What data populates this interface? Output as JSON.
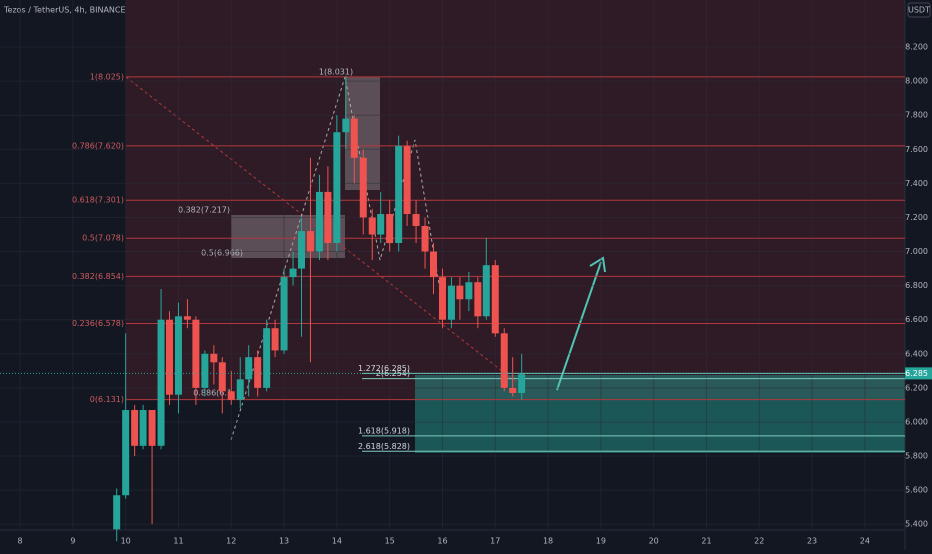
{
  "header": {
    "symbol": "Tezos / TetherUS, 4h, BINANCE",
    "currency": "USDT"
  },
  "chart_data": {
    "type": "candlestick",
    "xlim": [
      7.62,
      24.76
    ],
    "ylim": [
      5.366,
      8.476
    ],
    "xticks": [
      8,
      9,
      10,
      11,
      12,
      13,
      14,
      15,
      16,
      17,
      18,
      19,
      20,
      21,
      22,
      23,
      24
    ],
    "yticks": [
      {
        "value": 5.4,
        "label": "5.400"
      },
      {
        "value": 5.6,
        "label": "5.600"
      },
      {
        "value": 5.8,
        "label": "5.800"
      },
      {
        "value": 6.0,
        "label": "6.000"
      },
      {
        "value": 6.2,
        "label": "6.200"
      },
      {
        "value": 6.4,
        "label": "6.400"
      },
      {
        "value": 6.6,
        "label": "6.600"
      },
      {
        "value": 6.8,
        "label": "6.800"
      },
      {
        "value": 7.0,
        "label": "7.000"
      },
      {
        "value": 7.2,
        "label": "7.200"
      },
      {
        "value": 7.4,
        "label": "7.400"
      },
      {
        "value": 7.6,
        "label": "7.600"
      },
      {
        "value": 7.8,
        "label": "7.800"
      },
      {
        "value": 8.0,
        "label": "8.000"
      },
      {
        "value": 8.2,
        "label": "8.200"
      }
    ],
    "up_color": "#26a69a",
    "down_color": "#ef5350",
    "candles": {
      "x": [
        9.83,
        10,
        10.17,
        10.33,
        10.5,
        10.67,
        10.83,
        11,
        11.17,
        11.33,
        11.5,
        11.67,
        11.83,
        12,
        12.17,
        12.33,
        12.5,
        12.67,
        12.83,
        13,
        13.17,
        13.33,
        13.5,
        13.67,
        13.83,
        14,
        14.17,
        14.33,
        14.5,
        14.67,
        14.83,
        15,
        15.17,
        15.33,
        15.5,
        15.67,
        15.83,
        16,
        16.17,
        16.33,
        16.5,
        16.67,
        16.83,
        17,
        17.17,
        17.33,
        17.5
      ],
      "open": [
        5.37,
        5.57,
        6.07,
        5.86,
        6.07,
        5.86,
        6.6,
        6.16,
        6.62,
        6.6,
        6.2,
        6.4,
        6.35,
        6.18,
        6.13,
        6.25,
        6.38,
        6.2,
        6.55,
        6.42,
        6.85,
        6.9,
        7.12,
        7.0,
        7.35,
        7.05,
        7.7,
        7.78,
        7.55,
        7.2,
        7.1,
        7.22,
        7.05,
        7.62,
        7.22,
        7.15,
        7.0,
        6.85,
        6.6,
        6.8,
        6.72,
        6.82,
        6.62,
        6.92,
        6.52,
        6.2,
        6.17
      ],
      "high": [
        5.61,
        6.52,
        6.1,
        6.1,
        6.07,
        6.78,
        6.65,
        6.7,
        6.72,
        6.62,
        6.42,
        6.45,
        6.38,
        6.3,
        6.38,
        6.45,
        6.42,
        6.6,
        6.6,
        6.9,
        7.0,
        7.2,
        7.55,
        7.45,
        7.5,
        7.8,
        8.03,
        7.8,
        7.6,
        7.25,
        7.35,
        7.3,
        7.68,
        7.65,
        7.3,
        7.2,
        7.05,
        6.9,
        6.85,
        6.85,
        6.88,
        6.85,
        7.08,
        6.95,
        6.55,
        6.38,
        6.4
      ],
      "low": [
        5.3,
        5.55,
        5.8,
        5.84,
        5.4,
        5.84,
        6.1,
        6.05,
        6.55,
        6.1,
        6.15,
        6.22,
        6.05,
        6.1,
        6.08,
        6.15,
        6.15,
        6.18,
        6.38,
        6.4,
        6.8,
        6.5,
        6.35,
        6.95,
        6.95,
        7.0,
        7.6,
        7.4,
        7.1,
        6.95,
        7.05,
        7.0,
        7.0,
        7.15,
        7.05,
        6.9,
        6.75,
        6.55,
        6.55,
        6.6,
        6.65,
        6.55,
        6.6,
        6.5,
        6.18,
        6.15,
        6.13
      ],
      "close": [
        5.57,
        6.07,
        5.86,
        6.07,
        5.86,
        6.6,
        6.16,
        6.62,
        6.6,
        6.2,
        6.4,
        6.35,
        6.18,
        6.13,
        6.25,
        6.38,
        6.2,
        6.55,
        6.42,
        6.85,
        6.9,
        7.12,
        7.0,
        7.35,
        7.05,
        7.7,
        7.78,
        7.55,
        7.2,
        7.1,
        7.22,
        7.05,
        7.62,
        7.22,
        7.15,
        7.0,
        6.85,
        6.6,
        6.8,
        6.72,
        6.82,
        6.62,
        6.92,
        6.52,
        6.2,
        6.17,
        6.28
      ]
    },
    "fib_levels": [
      {
        "label": "1(8.025)",
        "value": 8.025
      },
      {
        "label": "0.786(7.620)",
        "value": 7.62
      },
      {
        "label": "0.618(7.301)",
        "value": 7.301
      },
      {
        "label": "0.5(7.078)",
        "value": 7.078
      },
      {
        "label": "0.382(6.854)",
        "value": 6.854
      },
      {
        "label": "0.236(6.578)",
        "value": 6.578
      },
      {
        "label": "0(6.131)",
        "value": 6.131
      }
    ],
    "ext_levels": [
      {
        "label": "1.272(6.285)",
        "value": 6.285
      },
      {
        "label": "2(6.254)",
        "value": 6.254
      },
      {
        "label": "1.618(5.918)",
        "value": 5.918
      },
      {
        "label": "2.618(5.828)",
        "value": 5.828
      }
    ],
    "annotations": [
      "1(8.031)",
      "0.382(7.217)",
      "0.5(6.966)",
      "0.886(6.1"
    ],
    "last_price": {
      "value": 6.285,
      "label": "6.285"
    }
  }
}
